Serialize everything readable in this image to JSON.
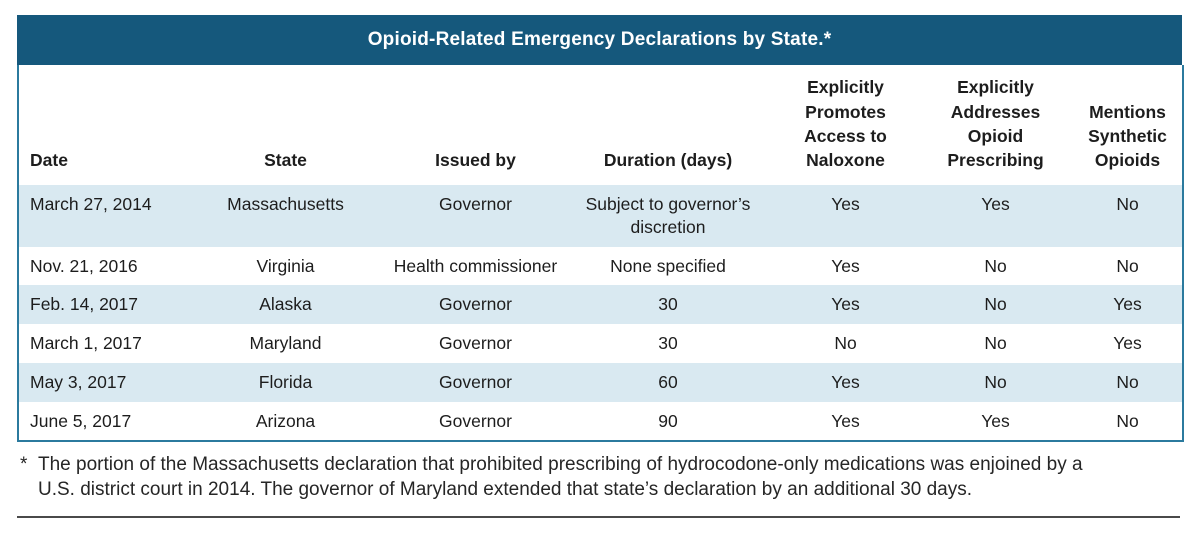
{
  "table": {
    "title": "Opioid-Related Emergency Declarations by State.*",
    "columns": [
      {
        "key": "date",
        "label": "Date",
        "align": "left"
      },
      {
        "key": "state",
        "label": "State",
        "align": "center"
      },
      {
        "key": "issued_by",
        "label": "Issued by",
        "align": "center"
      },
      {
        "key": "duration",
        "label": "Duration (days)",
        "align": "center"
      },
      {
        "key": "naloxone",
        "label": "Explicitly\nPromotes\nAccess to\nNaloxone",
        "align": "center"
      },
      {
        "key": "prescribing",
        "label": "Explicitly\nAddresses\nOpioid\nPrescribing",
        "align": "center"
      },
      {
        "key": "synthetic",
        "label": "Mentions\nSynthetic\nOpioids",
        "align": "center"
      }
    ],
    "rows": [
      {
        "date": "March 27, 2014",
        "state": "Massachusetts",
        "issued_by": "Governor",
        "duration": "Subject to governor’s discretion",
        "naloxone": "Yes",
        "prescribing": "Yes",
        "synthetic": "No"
      },
      {
        "date": "Nov. 21, 2016",
        "state": "Virginia",
        "issued_by": "Health commissioner",
        "duration": "None specified",
        "naloxone": "Yes",
        "prescribing": "No",
        "synthetic": "No"
      },
      {
        "date": "Feb. 14, 2017",
        "state": "Alaska",
        "issued_by": "Governor",
        "duration": "30",
        "naloxone": "Yes",
        "prescribing": "No",
        "synthetic": "Yes"
      },
      {
        "date": "March 1, 2017",
        "state": "Maryland",
        "issued_by": "Governor",
        "duration": "30",
        "naloxone": "No",
        "prescribing": "No",
        "synthetic": "Yes"
      },
      {
        "date": "May 3, 2017",
        "state": "Florida",
        "issued_by": "Governor",
        "duration": "60",
        "naloxone": "Yes",
        "prescribing": "No",
        "synthetic": "No"
      },
      {
        "date": "June 5, 2017",
        "state": "Arizona",
        "issued_by": "Governor",
        "duration": "90",
        "naloxone": "Yes",
        "prescribing": "Yes",
        "synthetic": "No"
      }
    ]
  },
  "footnote": {
    "marker": "*",
    "text": "The portion of the Massachusetts declaration that prohibited prescribing of hydrocodone-only medications was enjoined by a\nU.S. district court in 2014. The governor of Maryland extended that state’s declaration by an additional 30 days."
  },
  "colors": {
    "header_bg": "#15587C",
    "title_text": "#FFFFFF",
    "row_stripe": "#D9E9F1",
    "table_border": "#2B7A9E",
    "body_text": "#1D1D1D",
    "rule_color": "#4A4A4A"
  }
}
